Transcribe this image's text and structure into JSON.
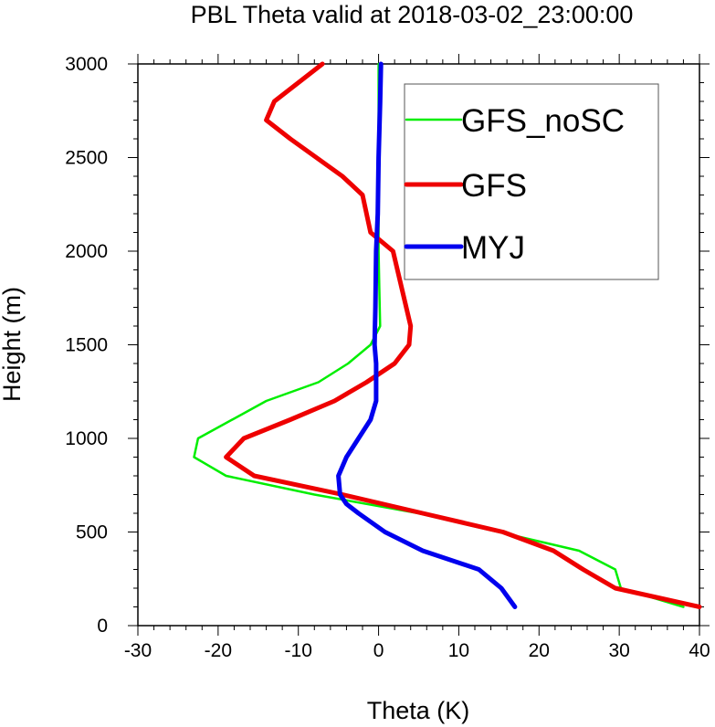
{
  "chart_data": {
    "type": "line",
    "title": "PBL Theta valid at 2018-03-02_23:00:00",
    "xlabel": "Theta (K)",
    "ylabel": "Height (m)",
    "xlim": [
      -30,
      40
    ],
    "ylim": [
      0,
      3000
    ],
    "xticks": [
      -30,
      -20,
      -10,
      0,
      10,
      20,
      30,
      40
    ],
    "xtick_labels": [
      "-30",
      "-20",
      "-10",
      "0",
      "10",
      "20",
      "30",
      "40"
    ],
    "yticks": [
      0,
      500,
      1000,
      1500,
      2000,
      2500,
      3000
    ],
    "ytick_labels": [
      "0",
      "500",
      "1000",
      "1500",
      "2000",
      "2500",
      "3000"
    ],
    "grid": false,
    "legend_position": "top-right",
    "series": [
      {
        "name": "GFS_noSC",
        "color": "#00ee00",
        "x": [
          38,
          30.2,
          29.5,
          25,
          15,
          5,
          -8,
          -19,
          -23,
          -22.5,
          -14,
          -7.5,
          -3.8,
          -1,
          0.2,
          0.1,
          0,
          0,
          0,
          0
        ],
        "y": [
          100,
          200,
          300,
          400,
          500,
          600,
          700,
          800,
          900,
          1000,
          1200,
          1300,
          1400,
          1500,
          1600,
          1800,
          2000,
          2400,
          2800,
          3000
        ]
      },
      {
        "name": "GFS",
        "color": "#ee0000",
        "x": [
          40,
          29.5,
          25.5,
          21.8,
          15.5,
          5.5,
          -4.5,
          -15.5,
          -19,
          -16.8,
          -11,
          -5.5,
          -1.5,
          2,
          3.8,
          4,
          1.8,
          -1,
          -2,
          -4.5,
          -11,
          -14,
          -13,
          -7
        ],
        "y": [
          100,
          200,
          300,
          400,
          500,
          600,
          700,
          800,
          900,
          1000,
          1100,
          1200,
          1300,
          1400,
          1500,
          1600,
          2000,
          2100,
          2300,
          2400,
          2600,
          2700,
          2800,
          3000
        ]
      },
      {
        "name": "MYJ",
        "color": "#0000ee",
        "x": [
          17,
          15.3,
          12.5,
          5.5,
          0.8,
          -2.5,
          -4,
          -4.8,
          -5,
          -4,
          -2.5,
          -1,
          -0.3,
          -0.3,
          -0.5,
          -0.4,
          -0.3,
          -0.1,
          0,
          0.2,
          0.3
        ],
        "y": [
          100,
          200,
          300,
          400,
          500,
          600,
          650,
          700,
          800,
          900,
          1000,
          1100,
          1200,
          1400,
          1500,
          1700,
          2000,
          2200,
          2500,
          2800,
          3000
        ]
      }
    ]
  }
}
